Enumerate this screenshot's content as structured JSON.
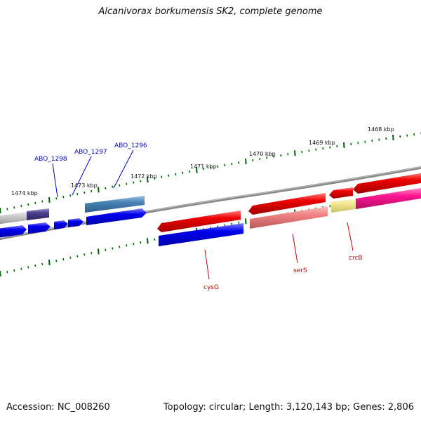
{
  "title": "Alcanivorax borkumensis SK2, complete genome",
  "footer": {
    "accession": "Accession: NC_008260",
    "topology": "Topology: circular; Length: 3,120,143 bp; Genes: 2,806"
  },
  "ticks": [
    "1474 kbp",
    "1473 kbp",
    "1472 kbp",
    "1471 kbp",
    "1470 kbp",
    "1469 kbp",
    "1468 kbp"
  ],
  "gene_labels": {
    "abo_1298": "ABO_1298",
    "abo_1297": "ABO_1297",
    "abo_1296": "ABO_1296",
    "cysG": "cysG",
    "serS": "serS",
    "crcB": "crcB"
  },
  "colors": {
    "blue": "#0000ee",
    "steel_blue": "#4682b4",
    "dark_slate": "#483d8b",
    "red": "#ee0000",
    "light_red": "#f08080",
    "magenta": "#ff1493",
    "khaki": "#f0e68c",
    "backbone": "#808080",
    "tick_green": "#006400"
  }
}
